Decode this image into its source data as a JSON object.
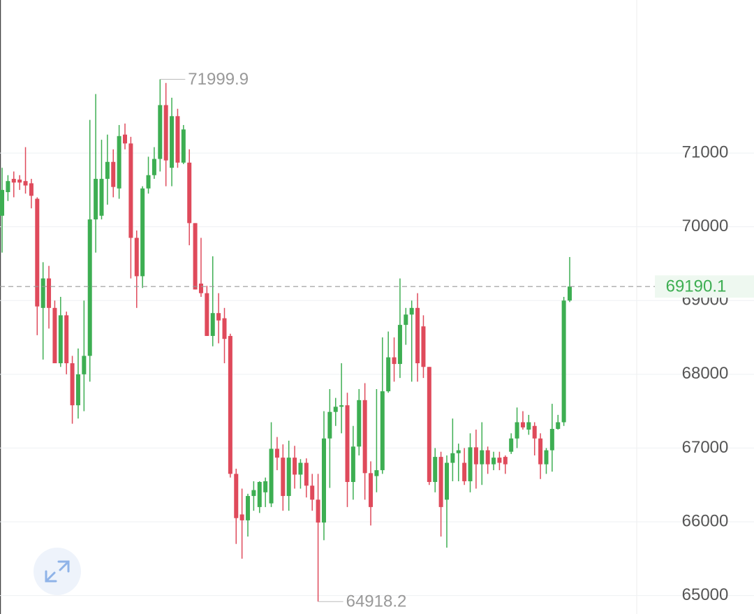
{
  "chart_data": {
    "type": "candlestick",
    "open": [
      70150,
      70470,
      70650,
      70640,
      70620,
      70590,
      70380,
      68900,
      69300,
      68900,
      68150,
      68800,
      68150,
      67580,
      68000,
      68250,
      70100,
      70150,
      70650,
      70880,
      70520,
      71250,
      71130,
      69850,
      69330,
      70520,
      70700,
      70920,
      71650,
      70800,
      71500,
      70870,
      70870,
      70050,
      69230,
      69100,
      68520,
      68830,
      68760,
      68520,
      66650,
      66100,
      66020,
      66350,
      66200,
      66400,
      66250,
      66990,
      66870,
      66350,
      66870,
      66640,
      66800,
      66490,
      66300,
      65990,
      67130,
      67490,
      67560,
      67580,
      66540,
      67020,
      67650,
      66660,
      66620,
      66700,
      67770,
      68230,
      68140,
      68670,
      68810,
      68900,
      68650,
      68100,
      66540,
      66880,
      66300,
      66800,
      66930,
      66800,
      66550,
      67010,
      66780,
      66970,
      66780,
      66870,
      66880,
      66950,
      67130,
      67350,
      67250,
      67300,
      67130,
      66780,
      66970,
      67260,
      67350,
      69000
    ],
    "high": [
      70800,
      70700,
      70750,
      70700,
      71080,
      70650,
      70400,
      69520,
      69470,
      69000,
      69050,
      68850,
      68250,
      68350,
      69000,
      71450,
      71800,
      71180,
      71250,
      71050,
      71380,
      71400,
      71220,
      69950,
      70550,
      70950,
      71080,
      71999.9,
      71950,
      71750,
      71600,
      71380,
      71050,
      70050,
      69850,
      69200,
      69600,
      69100,
      68900,
      68550,
      66720,
      66450,
      66380,
      66550,
      66550,
      66600,
      67350,
      67150,
      67050,
      67100,
      67030,
      66850,
      66860,
      66650,
      66650,
      67500,
      67800,
      67680,
      68150,
      67750,
      67300,
      67800,
      67880,
      66820,
      67800,
      68500,
      68580,
      68500,
      69300,
      68900,
      69000,
      69100,
      68800,
      68100,
      67000,
      66950,
      66900,
      67400,
      67060,
      67000,
      67200,
      67250,
      67350,
      67020,
      66950,
      66950,
      66900,
      67200,
      67550,
      67500,
      67450,
      67350,
      67200,
      67000,
      67600,
      67450,
      69050,
      69590
    ],
    "low": [
      69650,
      70350,
      70400,
      70500,
      70450,
      70250,
      68530,
      68200,
      68620,
      68150,
      68100,
      68000,
      67330,
      67400,
      67500,
      67900,
      69650,
      70100,
      70300,
      70400,
      70380,
      71050,
      69300,
      68900,
      69170,
      70450,
      70650,
      70750,
      70550,
      70550,
      70800,
      70850,
      69750,
      69150,
      69050,
      68520,
      68380,
      68420,
      68150,
      66600,
      65700,
      65500,
      65800,
      66150,
      66120,
      66200,
      66200,
      66700,
      66150,
      66150,
      66450,
      66450,
      66330,
      66150,
      64918.2,
      65750,
      66460,
      67300,
      67200,
      66200,
      66300,
      66900,
      66300,
      65950,
      66400,
      66650,
      67750,
      67900,
      67950,
      68400,
      67900,
      67900,
      67950,
      66500,
      66400,
      65800,
      65650,
      66550,
      66550,
      66500,
      66400,
      66450,
      66500,
      66650,
      66700,
      66700,
      66650,
      66920,
      67000,
      67250,
      67180,
      66900,
      66580,
      66650,
      66680,
      67250,
      67300,
      68980
    ],
    "close": [
      70500,
      70620,
      70600,
      70600,
      70560,
      70420,
      68920,
      69300,
      68900,
      68150,
      68800,
      68150,
      67580,
      68000,
      68250,
      70100,
      70650,
      70650,
      70880,
      70540,
      71230,
      71130,
      69850,
      69330,
      70520,
      70700,
      70920,
      71650,
      70900,
      71500,
      70870,
      71320,
      70050,
      69150,
      69100,
      68520,
      68830,
      68730,
      68480,
      66650,
      66050,
      66020,
      66350,
      66430,
      66540,
      66550,
      66990,
      66870,
      66350,
      66870,
      66640,
      66800,
      66490,
      66300,
      65990,
      67130,
      67490,
      67560,
      67580,
      66540,
      67020,
      67650,
      66660,
      66200,
      66700,
      67770,
      68230,
      68140,
      68670,
      68810,
      68900,
      68150,
      68100,
      66540,
      66880,
      66200,
      66800,
      66930,
      66970,
      66550,
      67010,
      66780,
      66970,
      66780,
      66870,
      66800,
      66780,
      67130,
      67350,
      67280,
      67350,
      67130,
      66780,
      66970,
      67260,
      67350,
      69000,
      69190.1
    ],
    "up_color": "#3dae52",
    "down_color": "#df4a5b",
    "ylim": [
      64750,
      73075
    ],
    "yticks": [
      65000,
      66000,
      67000,
      68000,
      69000,
      70000,
      71000
    ],
    "grid": true,
    "high_annotation": 71999.9,
    "low_annotation": 64918.2,
    "last_price": 69190.1
  }
}
